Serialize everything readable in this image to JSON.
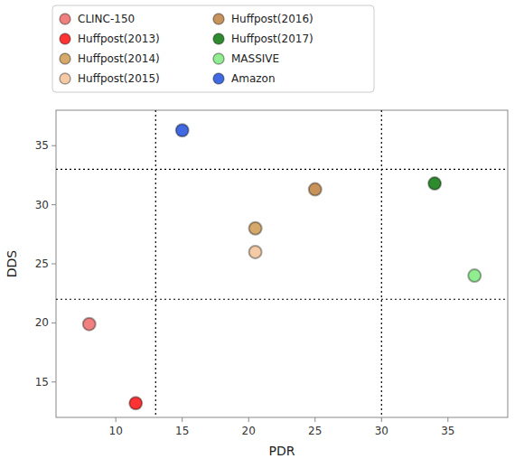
{
  "chart_data": {
    "type": "scatter",
    "xlabel": "PDR",
    "ylabel": "DDS",
    "series": [
      {
        "name": "CLINC-150",
        "color": "#F08080",
        "x": [
          8.0
        ],
        "values": [
          19.9
        ]
      },
      {
        "name": "Huffpost(2013)",
        "color": "#FF3333",
        "x": [
          11.5
        ],
        "values": [
          13.2
        ]
      },
      {
        "name": "Huffpost(2014)",
        "color": "#D4A96A",
        "x": [
          20.5
        ],
        "values": [
          28.0
        ]
      },
      {
        "name": "Huffpost(2015)",
        "color": "#F5CBA7",
        "x": [
          20.5
        ],
        "values": [
          26.0
        ]
      },
      {
        "name": "Huffpost(2016)",
        "color": "#C8935A",
        "x": [
          25.0
        ],
        "values": [
          31.3
        ]
      },
      {
        "name": "Huffpost(2017)",
        "color": "#2E8B2E",
        "x": [
          34.0
        ],
        "values": [
          31.8
        ]
      },
      {
        "name": "MASSIVE",
        "color": "#90EE90",
        "x": [
          37.0
        ],
        "values": [
          24.0
        ]
      },
      {
        "name": "Amazon",
        "color": "#4169E1",
        "x": [
          15.0
        ],
        "values": [
          36.3
        ]
      }
    ],
    "hlines": [
      22.0,
      33.0
    ],
    "vlines": [
      13.0,
      30.0
    ],
    "xlim": [
      5.5,
      39.5
    ],
    "ylim": [
      12.0,
      38.0
    ],
    "xticks": [
      10,
      15,
      20,
      25,
      30,
      35
    ],
    "yticks": [
      15,
      20,
      25,
      30,
      35
    ],
    "grid": false,
    "legend": "top"
  }
}
